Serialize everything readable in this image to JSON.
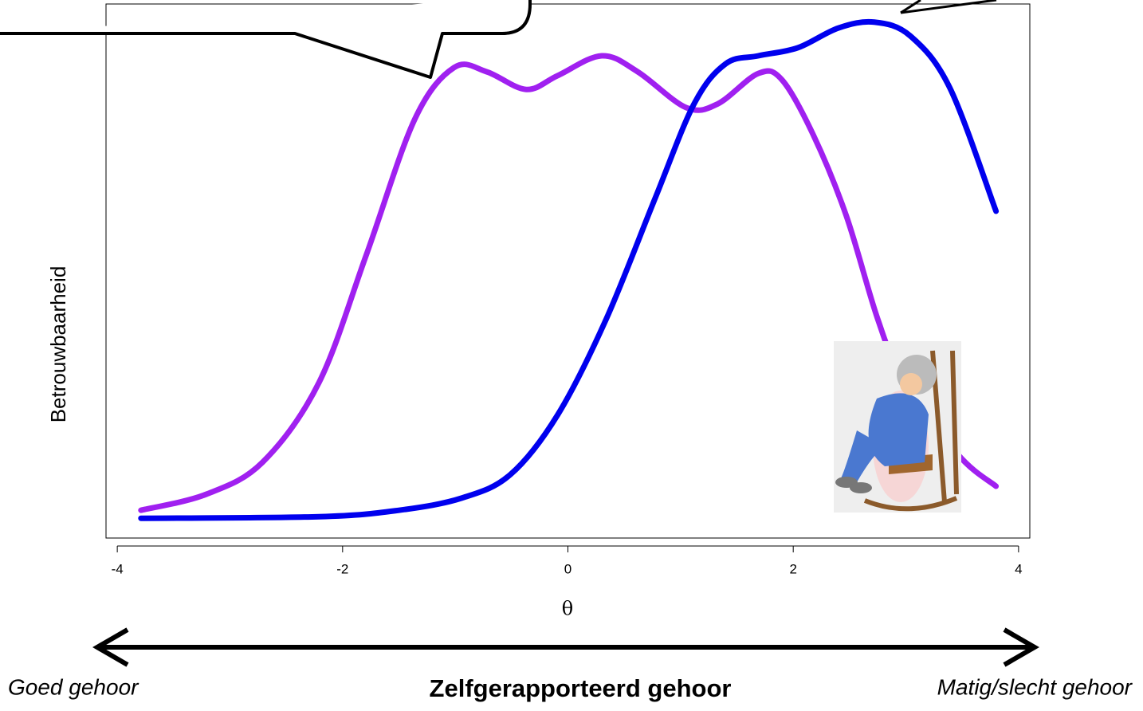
{
  "chart_data": {
    "type": "line",
    "xlabel": "θ",
    "ylabel": "Betrouwbaarheid",
    "annotations": [
      "Goed gehoor",
      "Zelfgerapporteerd gehoor",
      "Matig/slecht gehoor"
    ],
    "xlim": [
      -4.1,
      4.1
    ],
    "xticks": [
      -4,
      -2,
      0,
      2,
      4
    ],
    "ylim": [
      0,
      1
    ],
    "series": [
      {
        "color": "#a020f0",
        "x": [
          -3.79,
          -3.21,
          -2.71,
          -2.21,
          -1.79,
          -1.36,
          -1.01,
          -0.72,
          -0.37,
          -0.09,
          0.3,
          0.62,
          1.05,
          1.33,
          1.69,
          1.9,
          2.18,
          2.47,
          2.75,
          2.96,
          3.46,
          3.8
        ],
        "values": [
          0.052,
          0.082,
          0.142,
          0.291,
          0.53,
          0.784,
          0.881,
          0.873,
          0.84,
          0.866,
          0.903,
          0.873,
          0.806,
          0.813,
          0.87,
          0.858,
          0.754,
          0.604,
          0.41,
          0.306,
          0.157,
          0.097
        ]
      },
      {
        "color": "#0000ee",
        "x": [
          -3.79,
          -2.21,
          -1.5,
          -0.94,
          -0.51,
          -0.09,
          0.34,
          0.77,
          1.12,
          1.4,
          1.69,
          2.04,
          2.4,
          2.72,
          3.04,
          3.39,
          3.8
        ],
        "values": [
          0.037,
          0.04,
          0.052,
          0.075,
          0.119,
          0.231,
          0.41,
          0.634,
          0.813,
          0.888,
          0.903,
          0.918,
          0.955,
          0.966,
          0.94,
          0.843,
          0.612
        ]
      }
    ]
  }
}
